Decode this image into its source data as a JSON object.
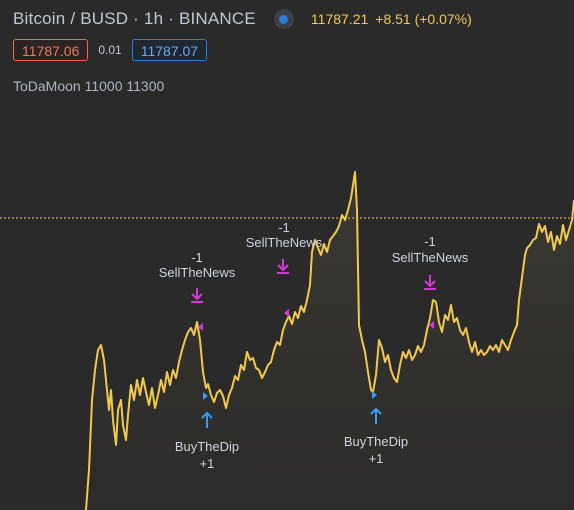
{
  "header": {
    "symbol_title": "Bitcoin / BUSD · 1h · BINANCE",
    "last_price": "11787.21",
    "change": "+8.51 (+0.07%)",
    "sell_price": "11787.06",
    "spread": "0.01",
    "buy_price": "11787.07",
    "indicator_label": "ToDaMoon 11000 11300"
  },
  "colors": {
    "line": "#f2c94c",
    "sell_marker": "#d63ad6",
    "buy_marker": "#3a9bef",
    "price_line": "#f2c94c"
  },
  "markers": [
    {
      "kind": "sell",
      "label": "SellTheNews",
      "qty": "-1"
    },
    {
      "kind": "buy",
      "label": "BuyTheDip",
      "qty": "+1"
    },
    {
      "kind": "sell",
      "label": "SellTheNews",
      "qty": "-1"
    },
    {
      "kind": "buy",
      "label": "BuyTheDip",
      "qty": "+1"
    },
    {
      "kind": "sell",
      "label": "SellTheNews",
      "qty": "-1"
    }
  ],
  "chart_data": {
    "type": "area",
    "title": "",
    "xlabel": "",
    "ylabel": "",
    "current_price_line": 11787.21
  }
}
